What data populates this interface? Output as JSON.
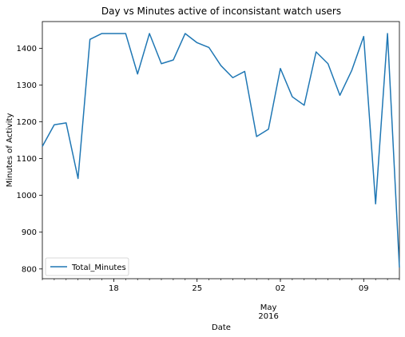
{
  "chart_data": {
    "type": "line",
    "title": "Day vs Minutes active of inconsistant watch users",
    "xlabel": "Date",
    "ylabel": "Minutes of Activity",
    "xlim": [
      "2016-04-12",
      "2016-05-12"
    ],
    "ylim": [
      773.5,
      1472.5
    ],
    "y_ticks": [
      800,
      900,
      1000,
      1100,
      1200,
      1300,
      1400
    ],
    "x_major_ticks": [
      {
        "date": "2016-04-18",
        "label": "18"
      },
      {
        "date": "2016-04-25",
        "label": "25"
      },
      {
        "date": "2016-05-02",
        "label": "02"
      },
      {
        "date": "2016-05-09",
        "label": "09"
      }
    ],
    "x_month_label": {
      "date": "2016-05-01",
      "month": "May",
      "year": "2016"
    },
    "x_minor_ticks": "daily",
    "grid": false,
    "legend": {
      "position": "lower left",
      "entries": [
        "Total_Minutes"
      ]
    },
    "series": [
      {
        "name": "Total_Minutes",
        "color": "#1f77b4",
        "x": [
          "2016-04-12",
          "2016-04-13",
          "2016-04-14",
          "2016-04-15",
          "2016-04-16",
          "2016-04-17",
          "2016-04-18",
          "2016-04-19",
          "2016-04-20",
          "2016-04-21",
          "2016-04-22",
          "2016-04-23",
          "2016-04-24",
          "2016-04-25",
          "2016-04-26",
          "2016-04-27",
          "2016-04-28",
          "2016-04-29",
          "2016-04-30",
          "2016-05-01",
          "2016-05-02",
          "2016-05-03",
          "2016-05-04",
          "2016-05-05",
          "2016-05-06",
          "2016-05-07",
          "2016-05-08",
          "2016-05-09",
          "2016-05-10",
          "2016-05-11",
          "2016-05-12"
        ],
        "values": [
          1133,
          1192,
          1197,
          1046,
          1424,
          1440,
          1440,
          1440,
          1330,
          1440,
          1358,
          1368,
          1440,
          1415,
          1402,
          1353,
          1320,
          1337,
          1160,
          1180,
          1345,
          1268,
          1245,
          1390,
          1358,
          1272,
          1340,
          1432,
          977,
          1440,
          804
        ]
      }
    ]
  }
}
